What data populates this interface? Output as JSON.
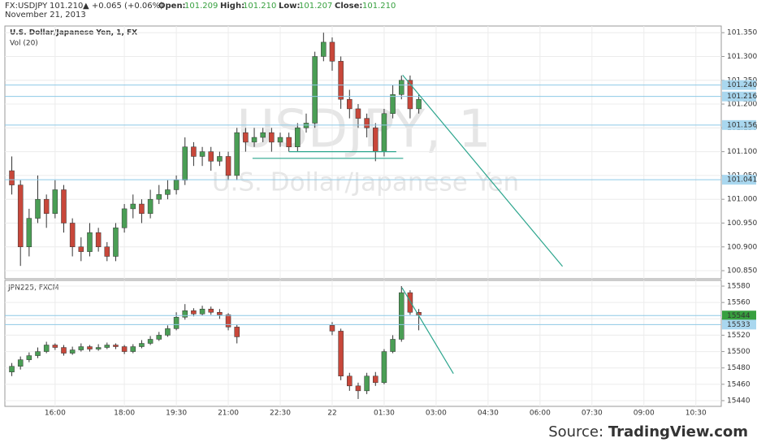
{
  "header": {
    "symbol": "FX:USDJPY",
    "price": "101.210",
    "change": "▲ +0.065 (+0.06%)",
    "fields": [
      {
        "label": "Open:",
        "value": "101.209"
      },
      {
        "label": "High:",
        "value": "101.210"
      },
      {
        "label": "Low:",
        "value": "101.207"
      },
      {
        "label": "Close:",
        "value": "101.210"
      }
    ],
    "date": "November 21, 2013"
  },
  "source": {
    "label": "Source:",
    "site": "TradingView.com"
  },
  "chart_data": [
    {
      "type": "candlestick",
      "title": "U.S. Dollar/Japanese Yen, 1, FX",
      "subtitle": "Vol (20)",
      "watermark": "USDJPY, 1",
      "watermark_subtitle": "U.S. Dollar/Japanese Yen",
      "up_color": "#4a9e55",
      "down_color": "#c8473a",
      "x": [
        -15,
        0,
        15,
        30,
        45,
        60,
        75,
        90,
        105,
        120,
        135,
        150,
        165,
        180,
        195,
        210,
        225,
        240,
        255,
        270,
        285,
        300,
        315,
        330,
        345,
        360,
        375,
        390,
        405,
        420,
        435,
        450,
        465,
        480,
        495,
        510,
        525,
        540,
        555,
        570,
        585,
        600,
        615,
        630,
        645,
        660,
        675,
        690
      ],
      "open": [
        101.06,
        101.03,
        100.9,
        100.96,
        101.0,
        100.97,
        101.02,
        100.95,
        100.9,
        100.89,
        100.93,
        100.9,
        100.88,
        100.94,
        100.98,
        100.99,
        100.97,
        101.0,
        101.01,
        101.02,
        101.04,
        101.11,
        101.09,
        101.1,
        101.08,
        101.09,
        101.05,
        101.14,
        101.12,
        101.13,
        101.14,
        101.12,
        101.13,
        101.11,
        101.15,
        101.16,
        101.3,
        101.33,
        101.29,
        101.21,
        101.19,
        101.17,
        101.15,
        101.1,
        101.18,
        101.22,
        101.25,
        101.19
      ],
      "high": [
        101.09,
        101.04,
        100.98,
        101.05,
        101.01,
        101.04,
        101.03,
        100.96,
        100.92,
        100.95,
        100.94,
        100.91,
        100.95,
        100.99,
        101.01,
        101.0,
        101.02,
        101.03,
        101.04,
        101.05,
        101.13,
        101.12,
        101.11,
        101.11,
        101.1,
        101.1,
        101.15,
        101.15,
        101.15,
        101.15,
        101.15,
        101.14,
        101.14,
        101.16,
        101.18,
        101.31,
        101.35,
        101.34,
        101.3,
        101.23,
        101.2,
        101.18,
        101.16,
        101.19,
        101.24,
        101.26,
        101.26,
        101.22
      ],
      "low": [
        101.01,
        100.86,
        100.88,
        100.95,
        100.94,
        100.96,
        100.93,
        100.88,
        100.87,
        100.88,
        100.89,
        100.87,
        100.87,
        100.93,
        100.96,
        100.95,
        100.96,
        100.99,
        101.0,
        101.01,
        101.03,
        101.07,
        101.07,
        101.06,
        101.07,
        101.04,
        101.04,
        101.1,
        101.11,
        101.12,
        101.1,
        101.11,
        101.1,
        101.1,
        101.14,
        101.15,
        101.29,
        101.27,
        101.19,
        101.17,
        101.15,
        101.13,
        101.08,
        101.09,
        101.17,
        101.21,
        101.17,
        101.18
      ],
      "close": [
        101.03,
        100.9,
        100.96,
        101.0,
        100.97,
        101.02,
        100.95,
        100.9,
        100.89,
        100.93,
        100.9,
        100.88,
        100.94,
        100.98,
        100.99,
        100.97,
        101.0,
        101.01,
        101.02,
        101.04,
        101.11,
        101.09,
        101.1,
        101.08,
        101.09,
        101.05,
        101.14,
        101.12,
        101.13,
        101.14,
        101.12,
        101.13,
        101.11,
        101.15,
        101.16,
        101.3,
        101.33,
        101.29,
        101.21,
        101.19,
        101.17,
        101.15,
        101.1,
        101.18,
        101.22,
        101.25,
        101.19,
        101.21
      ],
      "xlim": [
        -27,
        1214
      ],
      "ylim": [
        100.833,
        101.364
      ],
      "yticks": [
        {
          "value": 100.85,
          "label": "100.850"
        },
        {
          "value": 100.9,
          "label": "100.900"
        },
        {
          "value": 100.95,
          "label": "100.950"
        },
        {
          "value": 101.0,
          "label": "101.000"
        },
        {
          "value": 101.05,
          "label": "101.050"
        },
        {
          "value": 101.1,
          "label": "101.100"
        },
        {
          "value": 101.15,
          "label": "101.150"
        },
        {
          "value": 101.2,
          "label": "101.200"
        },
        {
          "value": 101.25,
          "label": "101.250"
        },
        {
          "value": 101.3,
          "label": "101.300"
        },
        {
          "value": 101.35,
          "label": "101.350"
        }
      ],
      "levels": [
        {
          "value": 101.24,
          "label": "101.240",
          "color": "#a9d7ef"
        },
        {
          "value": 101.216,
          "label": "101.216",
          "color": "#a9d7ef"
        },
        {
          "value": 101.156,
          "label": "101.156",
          "color": "#a9d7ef"
        },
        {
          "value": 101.041,
          "label": "101.041",
          "color": "#a9d7ef"
        }
      ],
      "trend_lines": [
        {
          "x": [
            465,
            651
          ],
          "y": [
            101.1,
            101.1
          ]
        },
        {
          "x": [
            402,
            663
          ],
          "y": [
            101.086,
            101.086
          ]
        },
        {
          "x": [
            662,
            939
          ],
          "y": [
            101.261,
            100.859
          ]
        }
      ]
    },
    {
      "type": "candlestick",
      "title": "JPN225, FXCM",
      "up_color": "#4a9e55",
      "down_color": "#c8473a",
      "x": [
        -15,
        0,
        15,
        30,
        45,
        60,
        75,
        90,
        105,
        120,
        135,
        150,
        165,
        180,
        195,
        210,
        225,
        240,
        255,
        270,
        285,
        300,
        315,
        330,
        345,
        360,
        375,
        540,
        555,
        570,
        585,
        600,
        615,
        630,
        645,
        660,
        675,
        690
      ],
      "open": [
        15475,
        15482,
        15490,
        15495,
        15500,
        15508,
        15505,
        15498,
        15502,
        15506,
        15503,
        15505,
        15508,
        15506,
        15500,
        15506,
        15510,
        15515,
        15520,
        15528,
        15542,
        15550,
        15546,
        15552,
        15548,
        15545,
        15530,
        15532,
        15525,
        15470,
        15458,
        15452,
        15470,
        15462,
        15500,
        15515,
        15572,
        15548
      ],
      "high": [
        15486,
        15494,
        15499,
        15505,
        15512,
        15510,
        15508,
        15506,
        15510,
        15508,
        15509,
        15511,
        15510,
        15508,
        15509,
        15514,
        15519,
        15524,
        15532,
        15548,
        15558,
        15553,
        15556,
        15555,
        15552,
        15547,
        15533,
        15536,
        15528,
        15474,
        15462,
        15474,
        15475,
        15503,
        15520,
        15580,
        15575,
        15552
      ],
      "low": [
        15470,
        15478,
        15487,
        15492,
        15498,
        15502,
        15495,
        15496,
        15500,
        15500,
        15501,
        15503,
        15503,
        15497,
        15498,
        15504,
        15508,
        15513,
        15518,
        15526,
        15539,
        15543,
        15544,
        15545,
        15540,
        15526,
        15510,
        15520,
        15465,
        15452,
        15442,
        15448,
        15458,
        15460,
        15498,
        15512,
        15545,
        15526
      ],
      "close": [
        15482,
        15490,
        15495,
        15500,
        15508,
        15505,
        15498,
        15502,
        15506,
        15503,
        15505,
        15508,
        15506,
        15500,
        15506,
        15510,
        15515,
        15520,
        15528,
        15542,
        15550,
        15546,
        15552,
        15548,
        15545,
        15530,
        15518,
        15525,
        15470,
        15458,
        15452,
        15470,
        15462,
        15500,
        15515,
        15572,
        15548,
        15544
      ],
      "xlim": [
        -27,
        1214
      ],
      "ylim": [
        15433,
        15587
      ],
      "yticks": [
        15440,
        15460,
        15480,
        15500,
        15520,
        15540,
        15560,
        15580
      ],
      "xticks": [
        {
          "value": 60,
          "label": "16:00"
        },
        {
          "value": 180,
          "label": "18:00"
        },
        {
          "value": 270,
          "label": "19:30"
        },
        {
          "value": 360,
          "label": "21:00"
        },
        {
          "value": 450,
          "label": "22:30"
        },
        {
          "value": 540,
          "label": "22"
        },
        {
          "value": 630,
          "label": "01:30"
        },
        {
          "value": 720,
          "label": "03:00"
        },
        {
          "value": 810,
          "label": "04:30"
        },
        {
          "value": 900,
          "label": "06:00"
        },
        {
          "value": 990,
          "label": "07:30"
        },
        {
          "value": 1080,
          "label": "09:00"
        },
        {
          "value": 1170,
          "label": "10:30"
        }
      ],
      "levels": [
        {
          "value": 15544,
          "color": "#37a03f",
          "text_color": "#ffffff"
        },
        {
          "value": 15533,
          "color": "#a9d7ef"
        }
      ],
      "trend_lines": [
        {
          "x": [
            661,
            750
          ],
          "y": [
            15578,
            15473
          ]
        }
      ]
    }
  ]
}
